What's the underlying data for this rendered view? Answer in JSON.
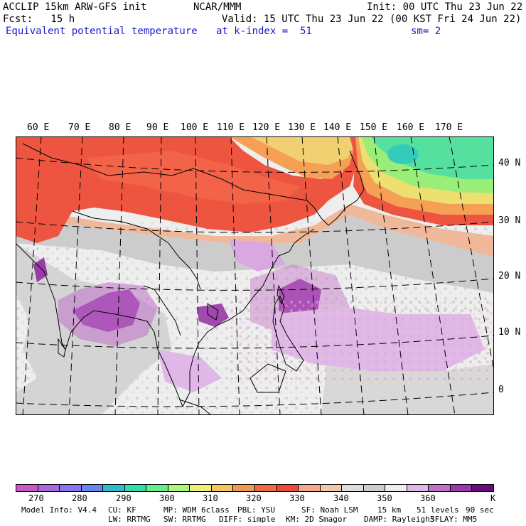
{
  "header": {
    "model_title": "ACCLIP 15km ARW-GFS init",
    "center": "NCAR/MMM",
    "init": "Init: 00 UTC Thu 23 Jun 22",
    "forecast": "Fcst:   15 h",
    "valid": "Valid: 15 UTC Thu 23 Jun 22 (00 KST Fri 24 Jun 22)",
    "field": "Equivalent potential temperature",
    "level": "at k-index =  51",
    "smoothing": "sm= 2"
  },
  "map": {
    "lon_labels": [
      "60 E",
      "70 E",
      "80 E",
      "90 E",
      "100 E",
      "110 E",
      "120 E",
      "130 E",
      "140 E",
      "150 E",
      "160 E",
      "170 E"
    ],
    "lat_labels": [
      "40 N",
      "30 N",
      "20 N",
      "10 N",
      "0"
    ]
  },
  "colorbar": {
    "colors": [
      "#cc55cc",
      "#aa66dd",
      "#8877ee",
      "#6688ee",
      "#33bbcc",
      "#33ddaa",
      "#66ee88",
      "#aaf77a",
      "#eef077",
      "#f5c560",
      "#f09a50",
      "#ee6a45",
      "#ee4a3a",
      "#f4aa8a",
      "#f0c8a8",
      "#dddddd",
      "#cccccc",
      "#eeeeee",
      "#e0b8e8",
      "#c070c8",
      "#9a3aa8",
      "#6a0a80"
    ],
    "labels": [
      "270",
      "280",
      "290",
      "300",
      "310",
      "320",
      "330",
      "340",
      "350",
      "360"
    ],
    "unit": "K"
  },
  "footer": {
    "line1": [
      "Model Info: V4.4",
      "CU: KF",
      "MP: WDM 6class",
      "PBL: YSU",
      "SF: Noah LSM",
      "15 km",
      "51 levels",
      "90 sec"
    ],
    "line2": [
      "LW: RRTMG",
      "SW: RRTMG",
      "DIFF: simple",
      "KM: 2D Smagor",
      "DAMP: Rayleigh3",
      "SFLAY: MM5"
    ]
  }
}
